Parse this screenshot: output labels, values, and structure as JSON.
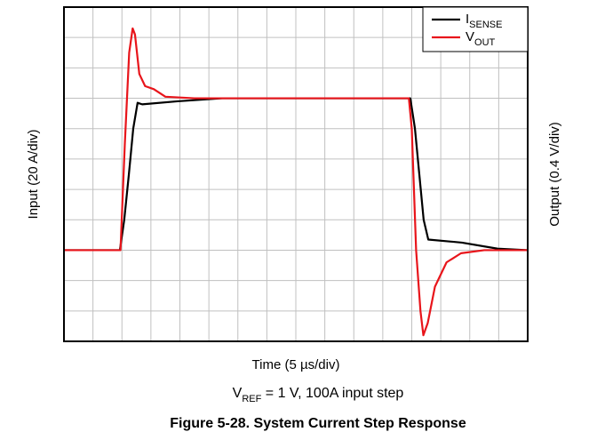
{
  "chart_data": {
    "type": "line",
    "xlabel": "Time (5 µs/div)",
    "ylabel": "Input (20 A/div)",
    "y2label": "Output (0.4 V/div)",
    "caption": {
      "main": "V",
      "sub": "REF",
      "rest": " = 1 V, 100A input step"
    },
    "title": "Figure 5-28. System Current Step Response",
    "xlim": [
      0,
      16
    ],
    "ylim": [
      0,
      11
    ],
    "y2lim": [
      0,
      11
    ],
    "xticks": [
      0,
      1,
      2,
      3,
      4,
      5,
      6,
      7,
      8,
      9,
      10,
      11,
      12,
      13,
      14,
      15,
      16
    ],
    "yticks": [
      0,
      1,
      2,
      3,
      4,
      5,
      6,
      7,
      8,
      9,
      10,
      11
    ],
    "grid": true,
    "legend": "upper right",
    "series": [
      {
        "name": "I",
        "name_sub": "SENSE",
        "color": "#000000",
        "x": [
          0,
          1.93,
          2.08,
          2.24,
          2.39,
          2.54,
          2.7,
          3.92,
          5.46,
          11.95,
          12.11,
          12.26,
          12.41,
          12.57,
          13.73,
          14.96,
          16
        ],
        "values": [
          3.0,
          3.0,
          4.0,
          5.5,
          7.0,
          7.85,
          7.8,
          7.9,
          8.0,
          8.0,
          7.0,
          5.5,
          4.0,
          3.35,
          3.25,
          3.05,
          3.0
        ]
      },
      {
        "name": "V",
        "name_sub": "OUT",
        "color": "#e8151b",
        "axis": "y2",
        "x": [
          0,
          1.95,
          2.1,
          2.25,
          2.37,
          2.45,
          2.6,
          2.8,
          3.1,
          3.5,
          4.5,
          11.9,
          12.0,
          12.15,
          12.3,
          12.4,
          12.55,
          12.8,
          13.2,
          13.7,
          14.5,
          16
        ],
        "values": [
          3.0,
          3.0,
          6.5,
          9.5,
          10.3,
          10.1,
          8.8,
          8.4,
          8.3,
          8.05,
          8.0,
          8.0,
          7.0,
          3.0,
          1.0,
          0.2,
          0.6,
          1.8,
          2.6,
          2.9,
          3.0,
          3.0
        ]
      }
    ]
  }
}
